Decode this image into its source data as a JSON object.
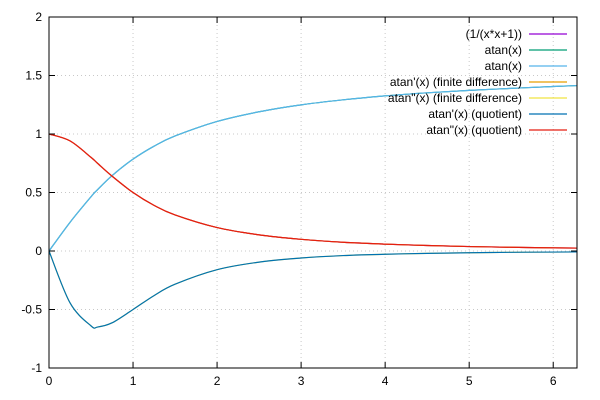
{
  "chart_data": {
    "type": "line",
    "title": "",
    "xlabel": "",
    "ylabel": "",
    "xlim": [
      0,
      6.283
    ],
    "ylim": [
      -1,
      2
    ],
    "grid": true,
    "legend_position": "top-right",
    "x_ticks": [
      {
        "value": 0,
        "label": "0"
      },
      {
        "value": 1,
        "label": "1"
      },
      {
        "value": 2,
        "label": "2"
      },
      {
        "value": 3,
        "label": "3"
      },
      {
        "value": 4,
        "label": "4"
      },
      {
        "value": 5,
        "label": "5"
      },
      {
        "value": 6,
        "label": "6"
      }
    ],
    "y_ticks": [
      {
        "value": -1,
        "label": "-1"
      },
      {
        "value": -0.5,
        "label": "-0.5"
      },
      {
        "value": 0,
        "label": "0"
      },
      {
        "value": 0.5,
        "label": "0.5"
      },
      {
        "value": 1,
        "label": "1"
      },
      {
        "value": 1.5,
        "label": "1.5"
      },
      {
        "value": 2,
        "label": "2"
      }
    ],
    "x": [
      0,
      0.25,
      0.5,
      0.577,
      0.75,
      1,
      1.25,
      1.5,
      2,
      2.5,
      3,
      3.5,
      4,
      4.5,
      5,
      5.5,
      6,
      6.283
    ],
    "series": [
      {
        "name": "(1/(x*x+1))",
        "color": "#9400d3",
        "values": [
          1,
          0.941,
          0.8,
          0.75,
          0.64,
          0.5,
          0.39,
          0.308,
          0.2,
          0.138,
          0.1,
          0.075,
          0.059,
          0.047,
          0.038,
          0.032,
          0.027,
          0.025
        ]
      },
      {
        "name": "atan(x)",
        "color": "#009e73",
        "values": [
          0,
          0.245,
          0.464,
          0.524,
          0.644,
          0.785,
          0.896,
          0.983,
          1.107,
          1.19,
          1.249,
          1.292,
          1.326,
          1.352,
          1.373,
          1.39,
          1.406,
          1.414
        ]
      },
      {
        "name": "atan(x)",
        "color": "#56b4e9",
        "values": [
          0,
          0.245,
          0.464,
          0.524,
          0.644,
          0.785,
          0.896,
          0.983,
          1.107,
          1.19,
          1.249,
          1.292,
          1.326,
          1.352,
          1.373,
          1.39,
          1.406,
          1.414
        ]
      },
      {
        "name": "atan'(x) (finite difference)",
        "color": "#e69f00",
        "values": [
          1,
          0.941,
          0.8,
          0.75,
          0.64,
          0.5,
          0.39,
          0.308,
          0.2,
          0.138,
          0.1,
          0.075,
          0.059,
          0.047,
          0.038,
          0.032,
          0.027,
          0.025
        ]
      },
      {
        "name": "atan\"(x) (finite difference)",
        "color": "#f0e442",
        "values": [
          0,
          -0.443,
          -0.64,
          -0.65,
          -0.614,
          -0.5,
          -0.381,
          -0.284,
          -0.16,
          -0.095,
          -0.06,
          -0.039,
          -0.028,
          -0.02,
          -0.015,
          -0.011,
          -0.009,
          -0.008
        ]
      },
      {
        "name": "atan'(x) (quotient)",
        "color": "#0072b2",
        "values": [
          0,
          -0.443,
          -0.64,
          -0.65,
          -0.614,
          -0.5,
          -0.381,
          -0.284,
          -0.16,
          -0.095,
          -0.06,
          -0.039,
          -0.028,
          -0.02,
          -0.015,
          -0.011,
          -0.009,
          -0.008
        ]
      },
      {
        "name": "atan\"(x) (quotient)",
        "color": "#e51e10",
        "values": [
          1,
          0.941,
          0.8,
          0.75,
          0.64,
          0.5,
          0.39,
          0.308,
          0.2,
          0.138,
          0.1,
          0.075,
          0.059,
          0.047,
          0.038,
          0.032,
          0.027,
          0.025
        ]
      }
    ]
  }
}
